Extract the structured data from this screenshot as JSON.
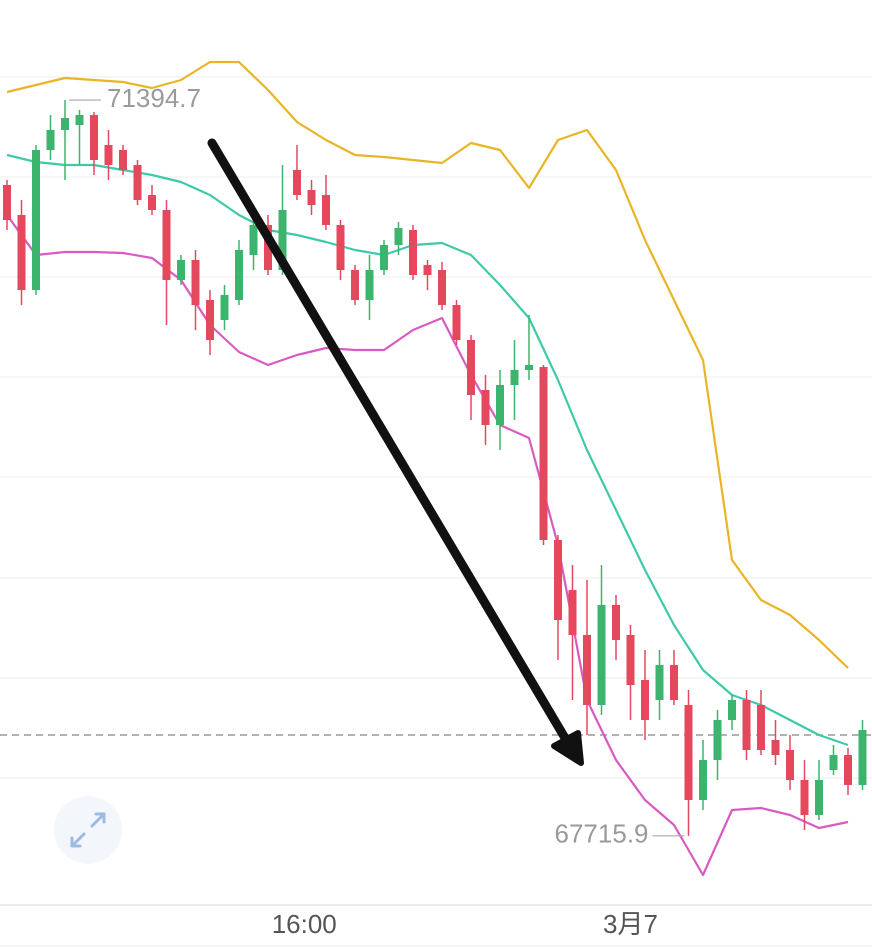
{
  "chart_data": {
    "type": "candlestick",
    "categories": [
      null,
      null,
      null,
      null,
      null,
      null,
      null,
      null,
      null,
      null,
      null,
      null,
      null,
      null,
      null,
      null,
      null,
      null,
      null,
      null,
      null,
      null,
      null,
      null,
      null,
      null,
      null,
      null,
      null,
      null,
      null,
      null,
      null,
      null,
      null,
      null,
      null,
      null,
      null,
      null,
      null,
      null,
      null,
      null,
      null,
      null,
      null,
      null,
      null,
      null,
      null,
      null,
      null,
      null,
      null,
      null,
      null,
      null,
      null,
      null
    ],
    "open": [
      70970,
      70820,
      70445,
      71145,
      71245,
      71270,
      71320,
      71170,
      71145,
      71070,
      70920,
      70845,
      70495,
      70595,
      70395,
      70295,
      70395,
      70620,
      70770,
      70545,
      71045,
      70945,
      70920,
      70770,
      70545,
      70395,
      70545,
      70670,
      70745,
      70570,
      70545,
      70370,
      70195,
      69945,
      69770,
      69970,
      70045,
      70060,
      69195,
      68945,
      68720,
      68370,
      68870,
      68720,
      68495,
      68395,
      68570,
      68370,
      67895,
      68095,
      68295,
      68395,
      68370,
      68195,
      68145,
      67995,
      67820,
      68045,
      68120,
      67970
    ],
    "high": [
      70995,
      70895,
      71170,
      71320,
      71394.7,
      71345,
      71335,
      71245,
      71170,
      71095,
      70970,
      70895,
      70620,
      70645,
      70445,
      70470,
      70695,
      70795,
      70820,
      71070,
      71170,
      70995,
      71020,
      70795,
      70570,
      70620,
      70695,
      70785,
      70770,
      70595,
      70585,
      70395,
      70220,
      70020,
      70045,
      70195,
      70320,
      70070,
      69220,
      69070,
      68995,
      69070,
      68920,
      68770,
      68645,
      68645,
      68645,
      68445,
      68195,
      68345,
      68420,
      68445,
      68445,
      68295,
      68220,
      68095,
      68095,
      68170,
      68155,
      68295
    ],
    "low": [
      70745,
      70370,
      70420,
      71095,
      70995,
      71070,
      71020,
      70995,
      71020,
      70870,
      70820,
      70270,
      70470,
      70245,
      70120,
      70245,
      70370,
      70545,
      70520,
      70520,
      70895,
      70820,
      70745,
      70495,
      70370,
      70295,
      70520,
      70620,
      70495,
      70445,
      70345,
      70170,
      69795,
      69670,
      69645,
      69795,
      69995,
      69170,
      68595,
      68395,
      68220,
      68320,
      68595,
      68295,
      68195,
      68295,
      68370,
      67715.9,
      67845,
      67995,
      68245,
      68095,
      68120,
      68070,
      67945,
      67745,
      67795,
      68020,
      67920,
      67945
    ],
    "close": [
      70795,
      70445,
      71145,
      71245,
      71305,
      71320,
      71095,
      71070,
      71045,
      70895,
      70845,
      70495,
      70595,
      70370,
      70195,
      70420,
      70645,
      70770,
      70545,
      70845,
      70920,
      70870,
      70770,
      70545,
      70395,
      70545,
      70670,
      70755,
      70520,
      70520,
      70370,
      70195,
      69920,
      69770,
      69970,
      70045,
      70070,
      69195,
      68795,
      68720,
      68370,
      68870,
      68695,
      68470,
      68295,
      68570,
      68395,
      67895,
      68095,
      68295,
      68395,
      68145,
      68145,
      68120,
      67995,
      67820,
      67995,
      68120,
      67970,
      68245
    ],
    "up_color": "#3cb46e",
    "down_color": "#e5485c",
    "band_x": [
      0,
      2,
      4,
      6,
      8,
      10,
      12,
      14,
      16,
      18,
      20,
      22,
      24,
      26,
      28,
      30,
      32,
      34,
      36,
      38,
      40,
      42,
      44,
      46,
      48,
      50,
      52,
      54,
      56,
      58
    ],
    "bands": [
      {
        "color": "#e9b425",
        "values": [
          71435,
          71470,
          71505,
          71495,
          71485,
          71455,
          71495,
          71585,
          71585,
          71445,
          71285,
          71195,
          71120,
          71110,
          71095,
          71080,
          71180,
          71145,
          70955,
          71195,
          71245,
          71045,
          70695,
          70395,
          70095,
          69095,
          68895,
          68820,
          68695,
          68555
        ]
      },
      {
        "color": "#3ecaa9",
        "values": [
          71120,
          71085,
          71070,
          71070,
          71045,
          71020,
          70985,
          70920,
          70820,
          70745,
          70720,
          70685,
          70645,
          70620,
          70670,
          70680,
          70620,
          70470,
          70305,
          69995,
          69645,
          69345,
          69045,
          68770,
          68545,
          68420,
          68370,
          68295,
          68220,
          68170
        ]
      },
      {
        "color": "#d95ac3",
        "values": [
          70820,
          70620,
          70635,
          70635,
          70630,
          70605,
          70495,
          70270,
          70135,
          70070,
          70120,
          70155,
          70145,
          70145,
          70245,
          70305,
          70020,
          69770,
          69705,
          69170,
          68395,
          68095,
          67895,
          67770,
          67520,
          67845,
          67855,
          67820,
          67755,
          67785
        ]
      }
    ],
    "price_line": 68220,
    "high_label": "71394.7",
    "low_label": "67715.9",
    "xticks": [
      {
        "value": 20.5,
        "label": "16:00"
      },
      {
        "value": 43,
        "label": "3月7"
      }
    ],
    "ylim": [
      67370,
      71895
    ]
  }
}
